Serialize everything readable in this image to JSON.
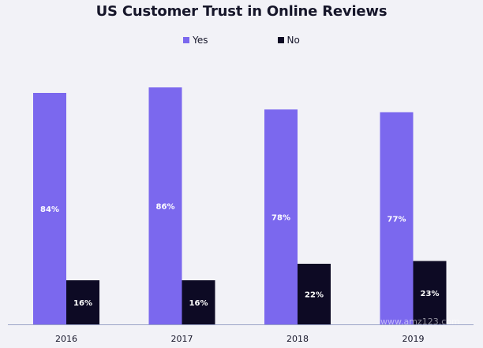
{
  "chart_data": {
    "type": "bar",
    "title": "US Customer Trust in Online Reviews",
    "categories": [
      "2016",
      "2017",
      "2018",
      "2019"
    ],
    "series": [
      {
        "name": "Yes",
        "values": [
          84,
          86,
          78,
          77
        ],
        "labels": [
          "84%",
          "86%",
          "78%",
          "77%"
        ],
        "color": "#7b68ee"
      },
      {
        "name": "No",
        "values": [
          16,
          16,
          22,
          23
        ],
        "labels": [
          "16%",
          "16%",
          "22%",
          "23%"
        ],
        "color": "#0d0a24"
      }
    ],
    "ylim": [
      0,
      100
    ],
    "grid": false,
    "legend_position": "top-center",
    "watermark": "www.amz123.com"
  }
}
